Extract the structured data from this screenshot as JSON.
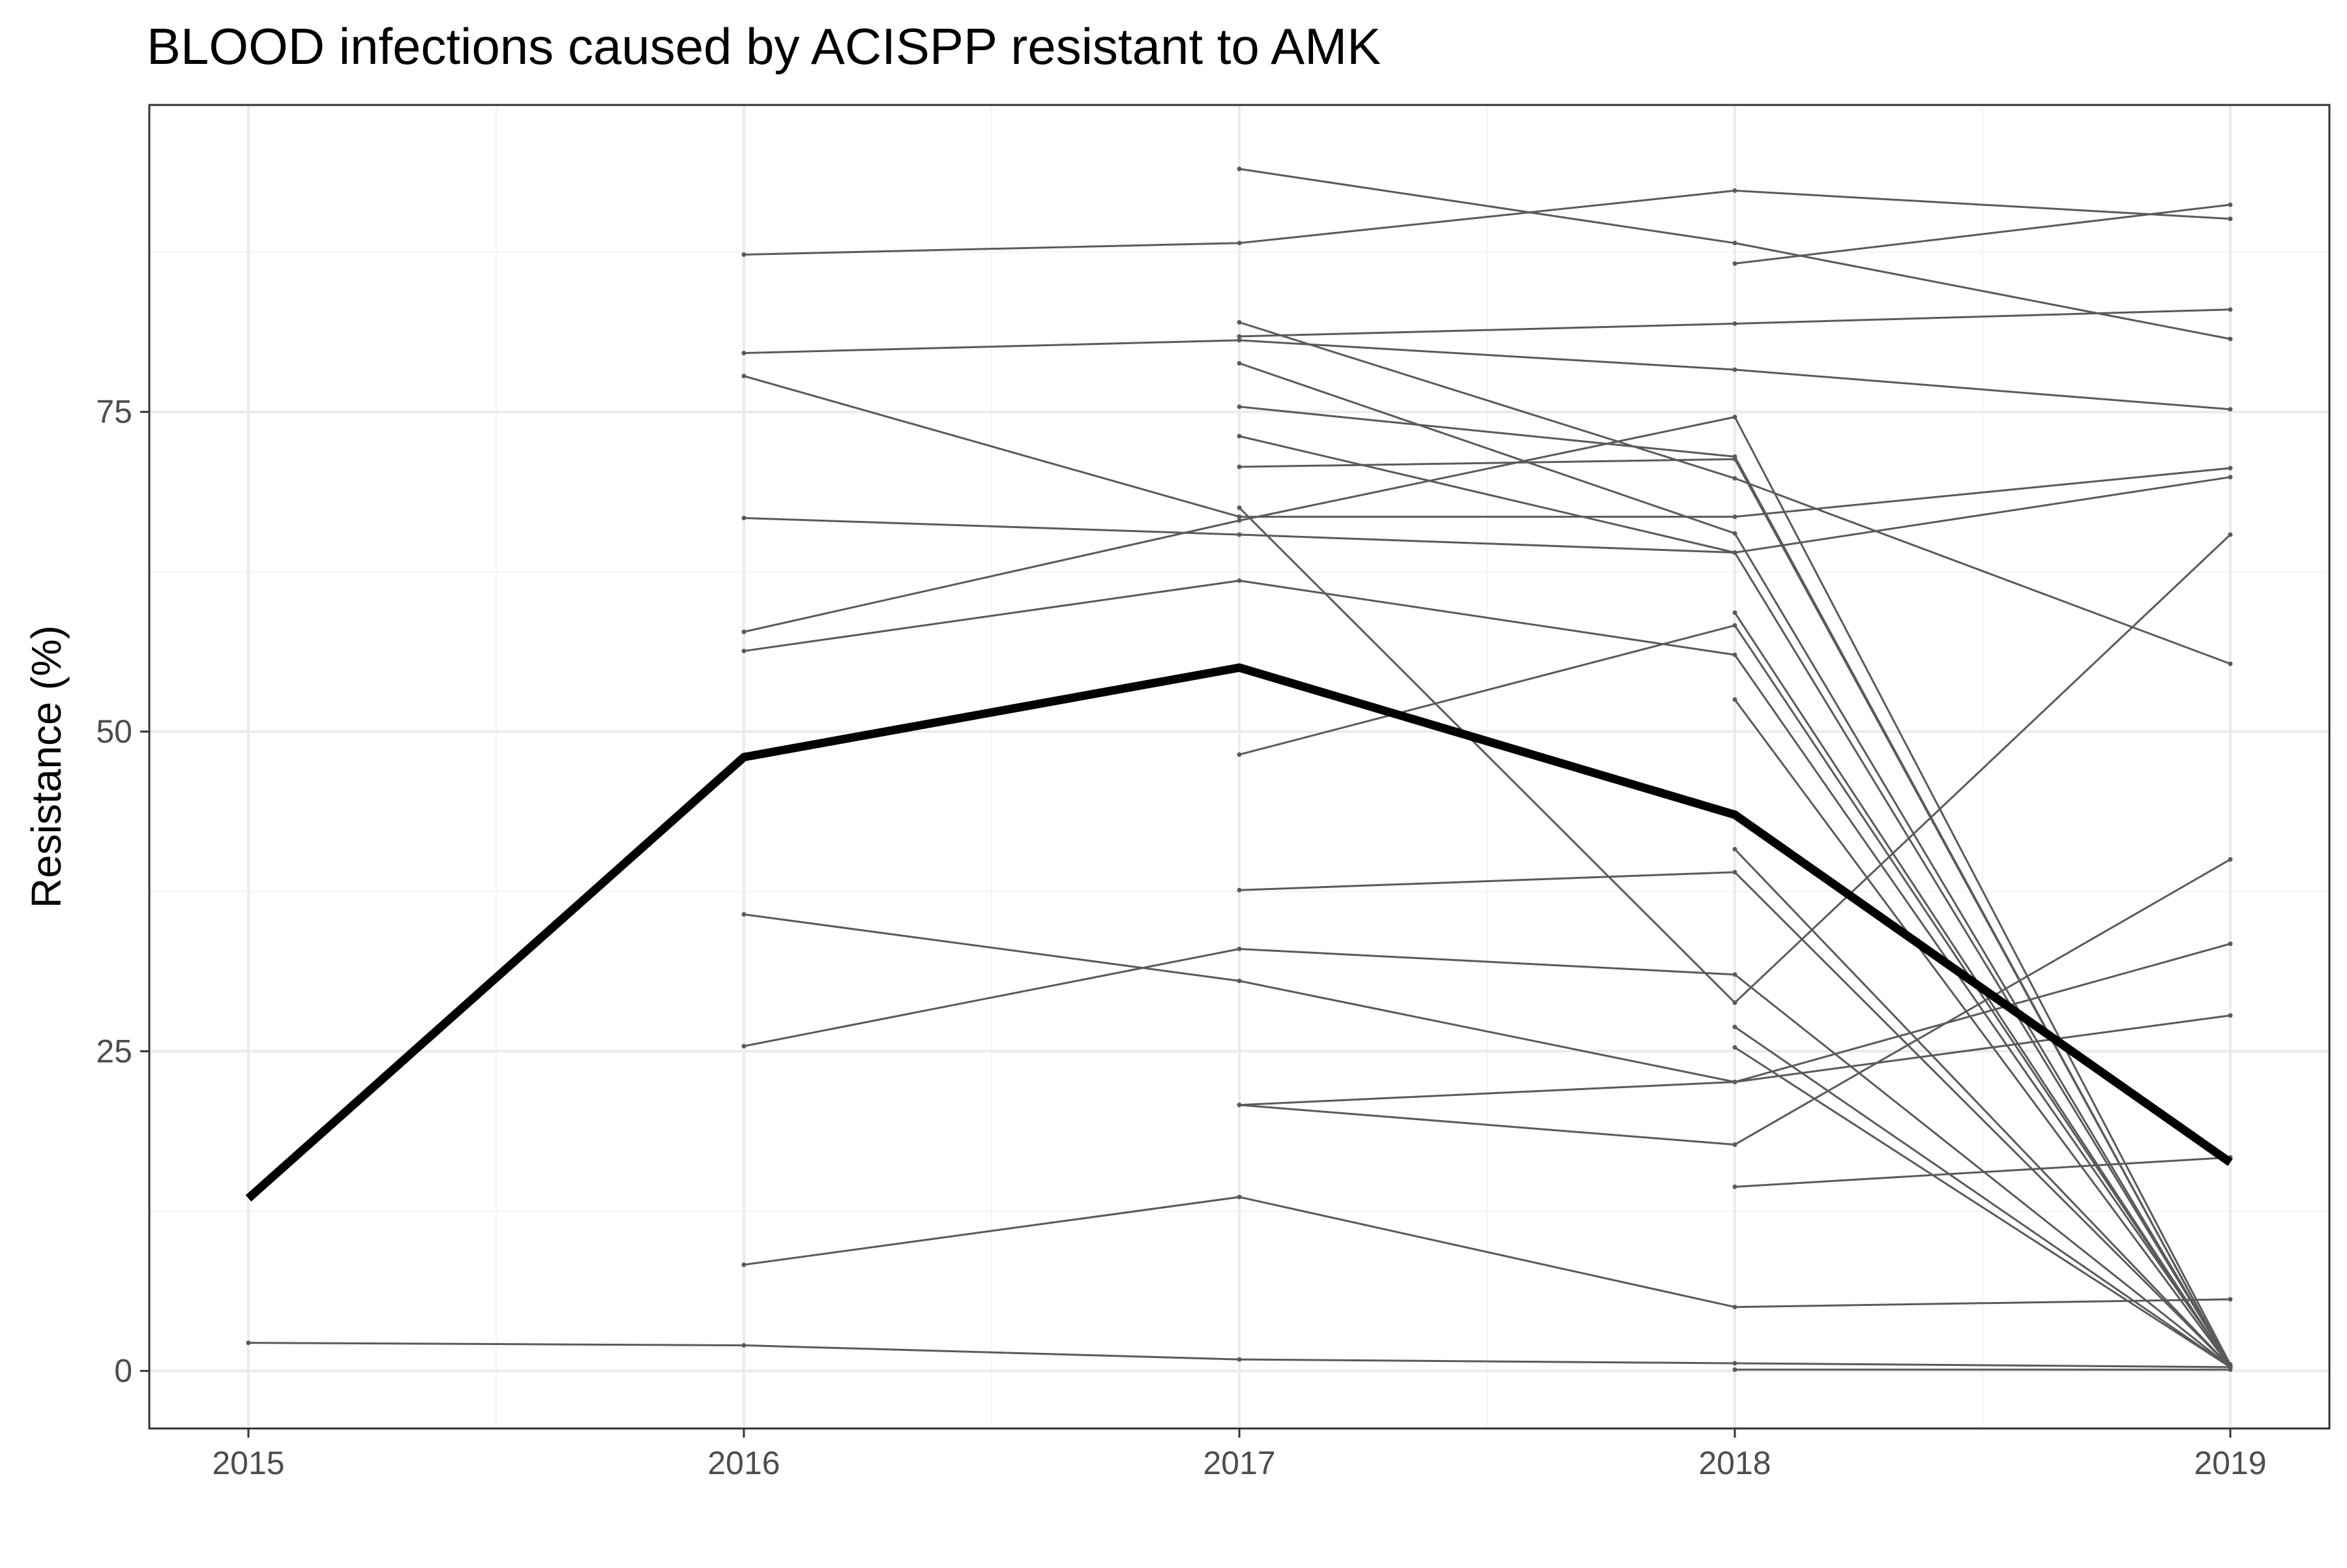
{
  "chart_data": {
    "type": "line",
    "title": "BLOOD infections caused by ACISPP resistant to AMK",
    "xlabel": "",
    "ylabel": "Resistance (%)",
    "xlim": [
      2014.8,
      2019.2
    ],
    "ylim": [
      -4.5,
      99
    ],
    "x_ticks": [
      2015,
      2016,
      2017,
      2018,
      2019
    ],
    "x_tick_labels": [
      "2015",
      "2016",
      "2017",
      "2018",
      "2019"
    ],
    "y_ticks": [
      0,
      25,
      50,
      75
    ],
    "y_tick_labels": [
      "0",
      "25",
      "50",
      "75"
    ],
    "grid": true,
    "colors": {
      "overall": "#000000",
      "individual": "#5a5a5a",
      "grid_major": "#ebebeb",
      "grid_minor": "#f4f4f4",
      "panel_border": "#333333",
      "tick_label": "#4d4d4d"
    },
    "overall_series": {
      "x": [
        2015,
        2016,
        2017,
        2018,
        2019
      ],
      "y": [
        13.5,
        48,
        55,
        43.5,
        16.3
      ]
    },
    "individual_series": [
      {
        "x": [
          2015,
          2016,
          2017,
          2018,
          2019
        ],
        "y": [
          2.2,
          2.0,
          0.9,
          0.6,
          0.3
        ]
      },
      {
        "x": [
          2016,
          2017,
          2018,
          2019
        ],
        "y": [
          87.3,
          88.2,
          92.3,
          90.1
        ]
      },
      {
        "x": [
          2016,
          2017,
          2018,
          2019
        ],
        "y": [
          79.6,
          80.6,
          78.3,
          75.2
        ]
      },
      {
        "x": [
          2016,
          2017,
          2018,
          2019
        ],
        "y": [
          77.8,
          66.8,
          66.8,
          70.6
        ]
      },
      {
        "x": [
          2016,
          2017,
          2018,
          2019
        ],
        "y": [
          66.7,
          65.4,
          64.0,
          69.9
        ]
      },
      {
        "x": [
          2016,
          2017,
          2018,
          2019
        ],
        "y": [
          57.8,
          66.5,
          74.6,
          0.5
        ]
      },
      {
        "x": [
          2016,
          2017,
          2018,
          2019
        ],
        "y": [
          56.3,
          61.8,
          56.0,
          0.4
        ]
      },
      {
        "x": [
          2016,
          2017,
          2018,
          2019
        ],
        "y": [
          35.7,
          30.5,
          22.6,
          27.8
        ]
      },
      {
        "x": [
          2016,
          2017,
          2018,
          2019
        ],
        "y": [
          25.4,
          33.0,
          31.0,
          0.3
        ]
      },
      {
        "x": [
          2016,
          2017,
          2018,
          2019
        ],
        "y": [
          8.3,
          13.6,
          5.0,
          5.6
        ]
      },
      {
        "x": [
          2017,
          2018,
          2019
        ],
        "y": [
          94.0,
          88.2,
          80.7
        ]
      },
      {
        "x": [
          2017,
          2018,
          2019
        ],
        "y": [
          80.9,
          81.9,
          83.0
        ]
      },
      {
        "x": [
          2017,
          2018,
          2019
        ],
        "y": [
          82.0,
          69.8,
          55.3
        ]
      },
      {
        "x": [
          2017,
          2018,
          2019
        ],
        "y": [
          78.8,
          65.5,
          0.4
        ]
      },
      {
        "x": [
          2017,
          2018,
          2019
        ],
        "y": [
          75.4,
          71.5,
          0.3
        ]
      },
      {
        "x": [
          2017,
          2018,
          2019
        ],
        "y": [
          73.1,
          64.0,
          0.4
        ]
      },
      {
        "x": [
          2017,
          2018,
          2019
        ],
        "y": [
          70.7,
          71.3,
          0.3
        ]
      },
      {
        "x": [
          2017,
          2018,
          2019
        ],
        "y": [
          67.5,
          28.8,
          65.4
        ]
      },
      {
        "x": [
          2017,
          2018,
          2019
        ],
        "y": [
          48.2,
          58.3,
          0.3
        ]
      },
      {
        "x": [
          2017,
          2018,
          2019
        ],
        "y": [
          37.6,
          39.0,
          0.3
        ]
      },
      {
        "x": [
          2017,
          2018,
          2019
        ],
        "y": [
          20.8,
          22.6,
          33.4
        ]
      },
      {
        "x": [
          2017,
          2018,
          2019
        ],
        "y": [
          20.8,
          17.7,
          40.0
        ]
      },
      {
        "x": [
          2018,
          2019
        ],
        "y": [
          86.6,
          91.2
        ]
      },
      {
        "x": [
          2018,
          2019
        ],
        "y": [
          59.3,
          0.3
        ]
      },
      {
        "x": [
          2018,
          2019
        ],
        "y": [
          52.5,
          0.3
        ]
      },
      {
        "x": [
          2018,
          2019
        ],
        "y": [
          40.8,
          0.3
        ]
      },
      {
        "x": [
          2018,
          2019
        ],
        "y": [
          26.9,
          0.3
        ]
      },
      {
        "x": [
          2018,
          2019
        ],
        "y": [
          25.3,
          0.3
        ]
      },
      {
        "x": [
          2018,
          2019
        ],
        "y": [
          14.4,
          16.7
        ]
      },
      {
        "x": [
          2018,
          2019
        ],
        "y": [
          0.1,
          0.1
        ]
      }
    ]
  }
}
